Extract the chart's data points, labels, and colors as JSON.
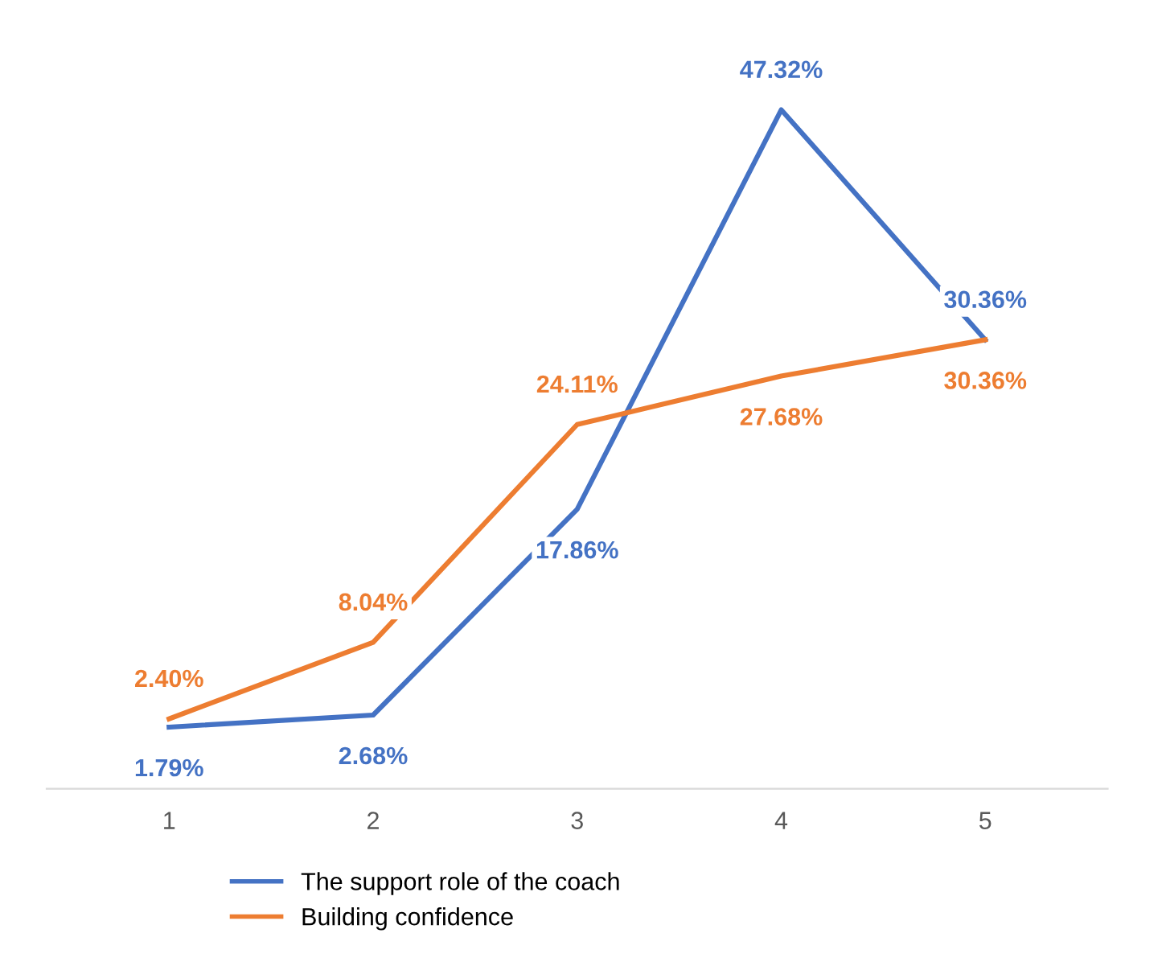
{
  "chart_data": {
    "type": "line",
    "categories": [
      "1",
      "2",
      "3",
      "4",
      "5"
    ],
    "series": [
      {
        "name": "The support role of the coach",
        "color": "#4472c4",
        "values": [
          1.79,
          2.68,
          17.86,
          47.32,
          30.36
        ],
        "value_labels": [
          "1.79%",
          "2.68%",
          "17.86%",
          "47.32%",
          "30.36%"
        ]
      },
      {
        "name": "Building confidence",
        "color": "#ed7d31",
        "values": [
          2.4,
          8.04,
          24.11,
          27.68,
          30.36
        ],
        "value_labels": [
          "2.40%",
          "8.04%",
          "24.11%",
          "27.68%",
          "30.36%"
        ]
      }
    ],
    "legend": "bottom",
    "grid": false,
    "marker": "none",
    "line_style": "solid"
  }
}
